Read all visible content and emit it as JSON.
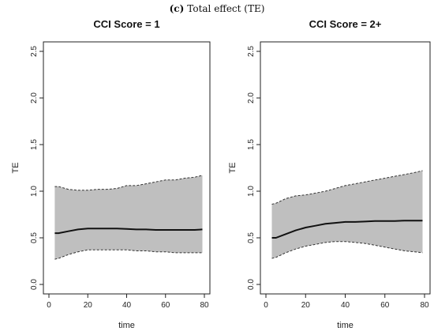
{
  "figure": {
    "label": "(c)",
    "title": "Total effect (TE)"
  },
  "chart_data": [
    {
      "type": "line",
      "title": "CCI Score = 1",
      "xlabel": "time",
      "ylabel": "TE",
      "xlim": [
        0,
        80
      ],
      "ylim": [
        0,
        2.5
      ],
      "xticks": [
        0,
        20,
        40,
        60,
        80
      ],
      "yticks": [
        0.0,
        0.5,
        1.0,
        1.5,
        2.0,
        2.5
      ],
      "ytick_labels": [
        "0.0",
        "0.5",
        "1.0",
        "1.5",
        "2.0",
        "2.5"
      ],
      "x": [
        3,
        5,
        10,
        15,
        20,
        25,
        30,
        35,
        40,
        45,
        50,
        55,
        60,
        65,
        70,
        75,
        79
      ],
      "series": [
        {
          "role": "estimate",
          "values": [
            0.55,
            0.55,
            0.57,
            0.59,
            0.6,
            0.6,
            0.6,
            0.6,
            0.595,
            0.59,
            0.59,
            0.585,
            0.585,
            0.585,
            0.585,
            0.585,
            0.59
          ]
        },
        {
          "role": "upper",
          "values": [
            1.05,
            1.05,
            1.02,
            1.01,
            1.01,
            1.02,
            1.02,
            1.03,
            1.06,
            1.06,
            1.08,
            1.1,
            1.12,
            1.12,
            1.14,
            1.15,
            1.17
          ]
        },
        {
          "role": "lower",
          "values": [
            0.27,
            0.28,
            0.32,
            0.35,
            0.37,
            0.37,
            0.37,
            0.37,
            0.37,
            0.36,
            0.36,
            0.35,
            0.35,
            0.34,
            0.34,
            0.34,
            0.34
          ]
        }
      ]
    },
    {
      "type": "line",
      "title": "CCI Score = 2+",
      "xlabel": "time",
      "ylabel": "TE",
      "xlim": [
        0,
        80
      ],
      "ylim": [
        0,
        2.5
      ],
      "xticks": [
        0,
        20,
        40,
        60,
        80
      ],
      "yticks": [
        0.0,
        0.5,
        1.0,
        1.5,
        2.0,
        2.5
      ],
      "ytick_labels": [
        "0.0",
        "0.5",
        "1.0",
        "1.5",
        "2.0",
        "2.5"
      ],
      "x": [
        3,
        5,
        10,
        15,
        20,
        25,
        30,
        35,
        40,
        45,
        50,
        55,
        60,
        65,
        70,
        75,
        79
      ],
      "series": [
        {
          "role": "estimate",
          "values": [
            0.5,
            0.5,
            0.54,
            0.58,
            0.61,
            0.63,
            0.65,
            0.66,
            0.67,
            0.67,
            0.675,
            0.68,
            0.68,
            0.68,
            0.685,
            0.685,
            0.685
          ]
        },
        {
          "role": "upper",
          "values": [
            0.86,
            0.87,
            0.92,
            0.95,
            0.96,
            0.98,
            1.0,
            1.03,
            1.06,
            1.08,
            1.1,
            1.12,
            1.14,
            1.16,
            1.18,
            1.2,
            1.22
          ]
        },
        {
          "role": "lower",
          "values": [
            0.28,
            0.29,
            0.34,
            0.38,
            0.41,
            0.43,
            0.45,
            0.46,
            0.46,
            0.45,
            0.44,
            0.42,
            0.4,
            0.38,
            0.36,
            0.35,
            0.34
          ]
        }
      ]
    }
  ]
}
